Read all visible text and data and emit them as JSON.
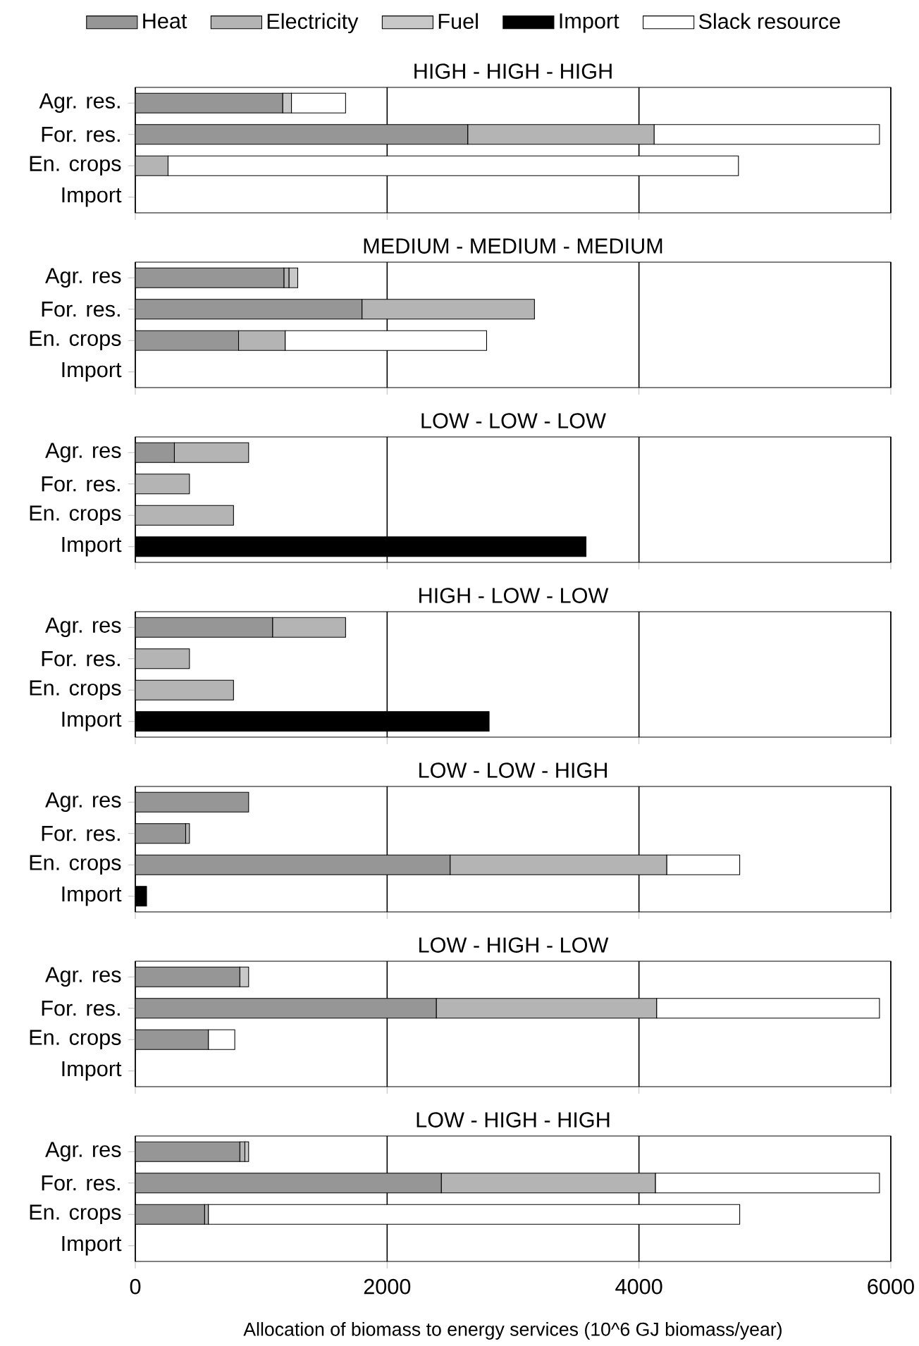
{
  "chart_data": [
    {
      "type": "bar",
      "orientation": "horizontal",
      "stacked": true,
      "title": "HIGH - HIGH - HIGH",
      "categories": [
        "Agr. res.",
        "For. res.",
        "En. crops",
        "Import"
      ],
      "xlim": [
        0,
        6000
      ],
      "xticks": [
        0,
        2000,
        4000,
        6000
      ],
      "grid": "x",
      "legend": "top",
      "tick_labels": "y",
      "series": [
        {
          "name": "Heat",
          "color": "#969696",
          "values": [
            1170,
            2640,
            0,
            0
          ]
        },
        {
          "name": "Electricity",
          "color": "#b4b4b4",
          "values": [
            0,
            1480,
            260,
            0
          ]
        },
        {
          "name": "Fuel",
          "color": "#c8c8c8",
          "values": [
            70,
            0,
            0,
            0
          ]
        },
        {
          "name": "Import",
          "color": "#000000",
          "values": [
            0,
            0,
            0,
            0
          ]
        },
        {
          "name": "Slack resource",
          "color": "#ffffff",
          "values": [
            430,
            1790,
            4530,
            0
          ]
        }
      ]
    },
    {
      "type": "bar",
      "orientation": "horizontal",
      "stacked": true,
      "title": "MEDIUM - MEDIUM - MEDIUM",
      "categories": [
        "Agr. res",
        "For. res.",
        "En. crops",
        "Import"
      ],
      "xlim": [
        0,
        6000
      ],
      "xticks": [
        0,
        2000,
        4000,
        6000
      ],
      "grid": "x",
      "tick_labels": "y",
      "series": [
        {
          "color": "#969696",
          "values": [
            1180,
            1800,
            820,
            0
          ]
        },
        {
          "color": "#b4b4b4",
          "values": [
            40,
            1370,
            370,
            0
          ]
        },
        {
          "color": "#c8c8c8",
          "values": [
            70,
            0,
            0,
            0
          ]
        },
        {
          "color": "#000000",
          "values": [
            0,
            0,
            0,
            0
          ]
        },
        {
          "color": "#ffffff",
          "values": [
            0,
            0,
            1600,
            0
          ]
        }
      ]
    },
    {
      "type": "bar",
      "orientation": "horizontal",
      "stacked": true,
      "title": "LOW - LOW - LOW",
      "categories": [
        "Agr. res",
        "For. res.",
        "En. crops",
        "Import"
      ],
      "xlim": [
        0,
        6000
      ],
      "xticks": [
        0,
        2000,
        4000,
        6000
      ],
      "grid": "x",
      "tick_labels": "y",
      "series": [
        {
          "color": "#969696",
          "values": [
            310,
            0,
            0,
            0
          ]
        },
        {
          "color": "#b4b4b4",
          "values": [
            590,
            430,
            780,
            0
          ]
        },
        {
          "color": "#c8c8c8",
          "values": [
            0,
            0,
            0,
            0
          ]
        },
        {
          "color": "#000000",
          "values": [
            0,
            0,
            0,
            3580
          ]
        },
        {
          "color": "#ffffff",
          "values": [
            0,
            0,
            0,
            0
          ]
        }
      ]
    },
    {
      "type": "bar",
      "orientation": "horizontal",
      "stacked": true,
      "title": "HIGH - LOW - LOW",
      "categories": [
        "Agr. res",
        "For. res.",
        "En. crops",
        "Import"
      ],
      "xlim": [
        0,
        6000
      ],
      "xticks": [
        0,
        2000,
        4000,
        6000
      ],
      "grid": "x",
      "tick_labels": "y",
      "series": [
        {
          "color": "#969696",
          "values": [
            1090,
            0,
            0,
            0
          ]
        },
        {
          "color": "#b4b4b4",
          "values": [
            580,
            430,
            780,
            0
          ]
        },
        {
          "color": "#c8c8c8",
          "values": [
            0,
            0,
            0,
            0
          ]
        },
        {
          "color": "#000000",
          "values": [
            0,
            0,
            0,
            2810
          ]
        },
        {
          "color": "#ffffff",
          "values": [
            0,
            0,
            0,
            0
          ]
        }
      ]
    },
    {
      "type": "bar",
      "orientation": "horizontal",
      "stacked": true,
      "title": "LOW - LOW - HIGH",
      "categories": [
        "Agr. res",
        "For. res.",
        "En. crops",
        "Import"
      ],
      "xlim": [
        0,
        6000
      ],
      "xticks": [
        0,
        2000,
        4000,
        6000
      ],
      "grid": "x",
      "tick_labels": "y",
      "series": [
        {
          "color": "#969696",
          "values": [
            900,
            400,
            2500,
            0
          ]
        },
        {
          "color": "#b4b4b4",
          "values": [
            0,
            30,
            1720,
            0
          ]
        },
        {
          "color": "#c8c8c8",
          "values": [
            0,
            0,
            0,
            0
          ]
        },
        {
          "color": "#000000",
          "values": [
            0,
            0,
            0,
            90
          ]
        },
        {
          "color": "#ffffff",
          "values": [
            0,
            0,
            580,
            0
          ]
        }
      ]
    },
    {
      "type": "bar",
      "orientation": "horizontal",
      "stacked": true,
      "title": "LOW - HIGH - LOW",
      "categories": [
        "Agr. res",
        "For. res.",
        "En. crops",
        "Import"
      ],
      "xlim": [
        0,
        6000
      ],
      "xticks": [
        0,
        2000,
        4000,
        6000
      ],
      "grid": "x",
      "tick_labels": "y",
      "series": [
        {
          "color": "#969696",
          "values": [
            830,
            2390,
            580,
            0
          ]
        },
        {
          "color": "#b4b4b4",
          "values": [
            0,
            1750,
            0,
            0
          ]
        },
        {
          "color": "#c8c8c8",
          "values": [
            70,
            0,
            0,
            0
          ]
        },
        {
          "color": "#000000",
          "values": [
            0,
            0,
            0,
            0
          ]
        },
        {
          "color": "#ffffff",
          "values": [
            0,
            1770,
            210,
            0
          ]
        }
      ]
    },
    {
      "type": "bar",
      "orientation": "horizontal",
      "stacked": true,
      "title": "LOW - HIGH - HIGH",
      "categories": [
        "Agr. res",
        "For. res.",
        "En. crops",
        "Import"
      ],
      "xlim": [
        0,
        6000
      ],
      "xticks": [
        0,
        2000,
        4000,
        6000
      ],
      "grid": "x",
      "xlabel": "Allocation of biomass to energy services (10^6 GJ biomass/year)",
      "series": [
        {
          "color": "#969696",
          "values": [
            830,
            2430,
            550,
            0
          ]
        },
        {
          "color": "#b4b4b4",
          "values": [
            40,
            1700,
            30,
            0
          ]
        },
        {
          "color": "#c8c8c8",
          "values": [
            30,
            0,
            0,
            0
          ]
        },
        {
          "color": "#000000",
          "values": [
            0,
            0,
            0,
            0
          ]
        },
        {
          "color": "#ffffff",
          "values": [
            0,
            1780,
            4220,
            0
          ]
        }
      ]
    }
  ]
}
